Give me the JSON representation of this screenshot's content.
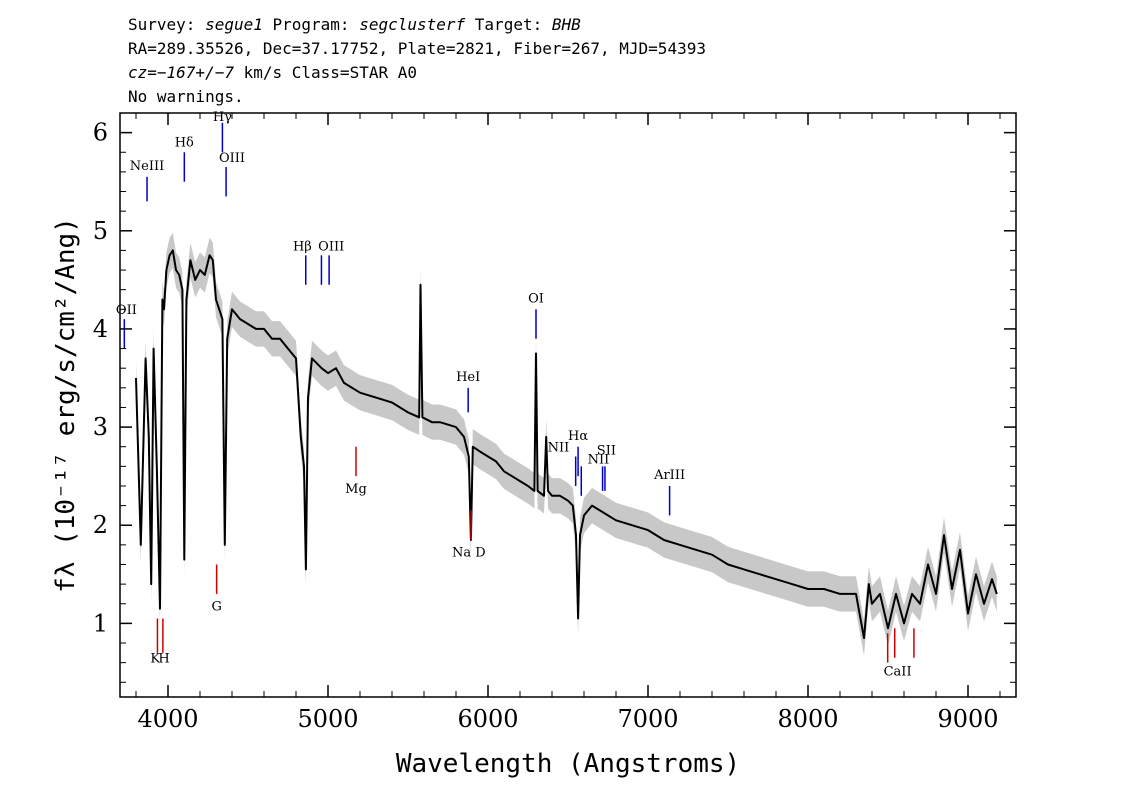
{
  "header": {
    "line1": {
      "p1": "Survey: ",
      "survey": "segue1",
      "p2": " Program: ",
      "program": "segclusterf",
      "p3": " Target: ",
      "target": "BHB"
    },
    "line2": "RA=289.35526, Dec=37.17752, Plate=2821, Fiber=267, MJD=54393",
    "line3": {
      "cz": "cz=−167+/−7",
      "rest": " km/s Class=STAR A0"
    },
    "line4": "No warnings."
  },
  "chart_data": {
    "type": "line",
    "xlabel": "Wavelength (Angstroms)",
    "ylabel": "fλ (10⁻¹⁷ erg/s/cm²/Ang)",
    "xlim": [
      3700,
      9300
    ],
    "ylim": [
      0.25,
      6.2
    ],
    "x_ticks": [
      4000,
      5000,
      6000,
      7000,
      8000,
      9000
    ],
    "y_ticks": [
      1,
      2,
      3,
      4,
      5,
      6
    ],
    "series": [
      {
        "color": "#000000",
        "x": [
          3800,
          3830,
          3860,
          3880,
          3895,
          3910,
          3930,
          3950,
          3965,
          3975,
          3990,
          4010,
          4030,
          4050,
          4070,
          4090,
          4102,
          4115,
          4140,
          4170,
          4200,
          4230,
          4260,
          4280,
          4300,
          4320,
          4340,
          4355,
          4370,
          4400,
          4450,
          4500,
          4550,
          4600,
          4650,
          4700,
          4750,
          4800,
          4830,
          4850,
          4862,
          4875,
          4900,
          4960,
          5000,
          5050,
          5100,
          5200,
          5300,
          5400,
          5500,
          5570,
          5578,
          5590,
          5650,
          5700,
          5800,
          5850,
          5880,
          5893,
          5905,
          5950,
          6000,
          6050,
          6100,
          6150,
          6200,
          6250,
          6290,
          6300,
          6310,
          6350,
          6364,
          6375,
          6400,
          6450,
          6500,
          6530,
          6550,
          6563,
          6575,
          6600,
          6650,
          6700,
          6800,
          6900,
          7000,
          7100,
          7200,
          7300,
          7400,
          7500,
          7600,
          7700,
          7800,
          7900,
          8000,
          8100,
          8200,
          8300,
          8350,
          8380,
          8400,
          8450,
          8500,
          8550,
          8600,
          8650,
          8700,
          8750,
          8800,
          8850,
          8900,
          8950,
          9000,
          9050,
          9100,
          9150,
          9180
        ],
        "values": [
          3.5,
          1.8,
          3.7,
          2.9,
          1.4,
          3.8,
          2.6,
          1.15,
          4.3,
          4.2,
          4.6,
          4.75,
          4.8,
          4.6,
          4.55,
          4.4,
          1.65,
          4.3,
          4.7,
          4.5,
          4.6,
          4.55,
          4.75,
          4.7,
          4.3,
          4.2,
          4.1,
          1.8,
          3.9,
          4.2,
          4.1,
          4.05,
          4.0,
          4.0,
          3.9,
          3.9,
          3.8,
          3.7,
          2.9,
          2.6,
          1.55,
          3.3,
          3.7,
          3.6,
          3.55,
          3.6,
          3.45,
          3.35,
          3.3,
          3.25,
          3.15,
          3.1,
          4.45,
          3.1,
          3.05,
          3.05,
          3.0,
          2.9,
          2.7,
          1.85,
          2.8,
          2.75,
          2.7,
          2.65,
          2.55,
          2.5,
          2.45,
          2.4,
          2.35,
          3.75,
          2.35,
          2.3,
          2.9,
          2.35,
          2.3,
          2.3,
          2.25,
          2.2,
          1.9,
          1.05,
          1.9,
          2.1,
          2.2,
          2.15,
          2.05,
          2.0,
          1.95,
          1.85,
          1.8,
          1.75,
          1.7,
          1.6,
          1.55,
          1.5,
          1.45,
          1.4,
          1.35,
          1.35,
          1.3,
          1.3,
          0.85,
          1.4,
          1.2,
          1.3,
          0.95,
          1.3,
          1.0,
          1.3,
          1.2,
          1.6,
          1.3,
          1.9,
          1.35,
          1.75,
          1.1,
          1.5,
          1.2,
          1.45,
          1.3
        ]
      }
    ],
    "annotations": [
      {
        "label": "Hγ",
        "x": 4340,
        "y1": 5.8,
        "y2": 6.1,
        "color": "#0000cc"
      },
      {
        "label": "Hδ",
        "x": 4102,
        "y1": 5.5,
        "y2": 5.8,
        "color": "#0000cc"
      },
      {
        "label": "NeIII",
        "x": 3869,
        "y1": 5.3,
        "y2": 5.55,
        "color": "#0000cc"
      },
      {
        "label": "OIII",
        "x": 4363,
        "y1": 5.35,
        "y2": 5.65,
        "color": "#0000cc"
      },
      {
        "label": "Hβ",
        "x": 4861,
        "y1": 4.45,
        "y2": 4.75,
        "color": "#0000cc"
      },
      {
        "label": "OIII",
        "x": 4959,
        "y1": 4.45,
        "y2": 4.75,
        "color": "#0000cc"
      },
      {
        "label": "OIII",
        "x": 5007,
        "y1": 4.45,
        "y2": 4.75,
        "color": "#0000cc"
      },
      {
        "label": "OII",
        "x": 3727,
        "y1": 3.8,
        "y2": 4.1,
        "color": "#0000cc"
      },
      {
        "label": "OI",
        "x": 6300,
        "y1": 3.9,
        "y2": 4.2,
        "color": "#0000cc"
      },
      {
        "label": "HeI",
        "x": 5876,
        "y1": 3.15,
        "y2": 3.4,
        "color": "#0000cc"
      },
      {
        "label": "NII",
        "x": 6548,
        "y1": 2.4,
        "y2": 2.7,
        "color": "#0000cc"
      },
      {
        "label": "Hα",
        "x": 6563,
        "y1": 2.5,
        "y2": 2.8,
        "color": "#0000cc"
      },
      {
        "label": "NII",
        "x": 6583,
        "y1": 2.3,
        "y2": 2.6,
        "color": "#0000cc"
      },
      {
        "label": "SII",
        "x": 6716,
        "y1": 2.35,
        "y2": 2.6,
        "color": "#0000cc"
      },
      {
        "label": "SII",
        "x": 6731,
        "y1": 2.35,
        "y2": 2.6,
        "color": "#0000cc"
      },
      {
        "label": "ArIII",
        "x": 7135,
        "y1": 2.1,
        "y2": 2.4,
        "color": "#0000cc"
      },
      {
        "label": "K",
        "x": 3934,
        "y1": 0.7,
        "y2": 1.05,
        "color": "#cc0000"
      },
      {
        "label": "H",
        "x": 3968,
        "y1": 0.7,
        "y2": 1.05,
        "color": "#cc0000"
      },
      {
        "label": "G",
        "x": 4304,
        "y1": 1.3,
        "y2": 1.6,
        "color": "#cc0000"
      },
      {
        "label": "Mg",
        "x": 5175,
        "y1": 2.5,
        "y2": 2.8,
        "color": "#cc0000"
      },
      {
        "label": "Na D",
        "x": 5894,
        "y1": 1.85,
        "y2": 2.15,
        "color": "#cc0000"
      },
      {
        "label": "CaII",
        "x": 8498,
        "y1": 0.6,
        "y2": 0.9,
        "color": "#cc0000"
      },
      {
        "label": "CaII",
        "x": 8542,
        "y1": 0.65,
        "y2": 0.95,
        "color": "#cc0000"
      },
      {
        "label": "CaII",
        "x": 8662,
        "y1": 0.65,
        "y2": 0.95,
        "color": "#cc0000"
      }
    ],
    "annotation_text": [
      {
        "text": "Hγ",
        "x": 4340,
        "y": 6.12,
        "anchor": "middle"
      },
      {
        "text": "Hδ",
        "x": 4102,
        "y": 5.86,
        "anchor": "middle"
      },
      {
        "text": "NeIII",
        "x": 3869,
        "y": 5.62,
        "anchor": "middle"
      },
      {
        "text": "OIII",
        "x": 4400,
        "y": 5.7,
        "anchor": "middle"
      },
      {
        "text": "Hβ",
        "x": 4840,
        "y": 4.8,
        "anchor": "middle"
      },
      {
        "text": "OIII",
        "x": 5020,
        "y": 4.8,
        "anchor": "middle"
      },
      {
        "text": "OII",
        "x": 3740,
        "y": 4.15,
        "anchor": "middle"
      },
      {
        "text": "OI",
        "x": 6300,
        "y": 4.27,
        "anchor": "middle"
      },
      {
        "text": "HeI",
        "x": 5876,
        "y": 3.47,
        "anchor": "middle"
      },
      {
        "text": "NII",
        "x": 6440,
        "y": 2.75,
        "anchor": "middle"
      },
      {
        "text": "Hα",
        "x": 6563,
        "y": 2.87,
        "anchor": "middle"
      },
      {
        "text": "SII",
        "x": 6740,
        "y": 2.72,
        "anchor": "middle"
      },
      {
        "text": "NII",
        "x": 6690,
        "y": 2.63,
        "anchor": "middle"
      },
      {
        "text": "ArIII",
        "x": 7135,
        "y": 2.47,
        "anchor": "middle"
      },
      {
        "text": "K",
        "x": 3920,
        "y": 0.6,
        "anchor": "middle"
      },
      {
        "text": "H",
        "x": 3975,
        "y": 0.6,
        "anchor": "middle"
      },
      {
        "text": "G",
        "x": 4304,
        "y": 1.13,
        "anchor": "middle"
      },
      {
        "text": "Mg",
        "x": 5175,
        "y": 2.33,
        "anchor": "middle"
      },
      {
        "text": "Na D",
        "x": 5880,
        "y": 1.68,
        "anchor": "middle"
      },
      {
        "text": "CaII",
        "x": 8560,
        "y": 0.47,
        "anchor": "middle"
      }
    ],
    "colors": {
      "flux": "#000000",
      "error_band": "#c8c8c8",
      "emission": "#0000cc",
      "absorption": "#cc0000"
    },
    "grid": false,
    "legend": "none"
  }
}
